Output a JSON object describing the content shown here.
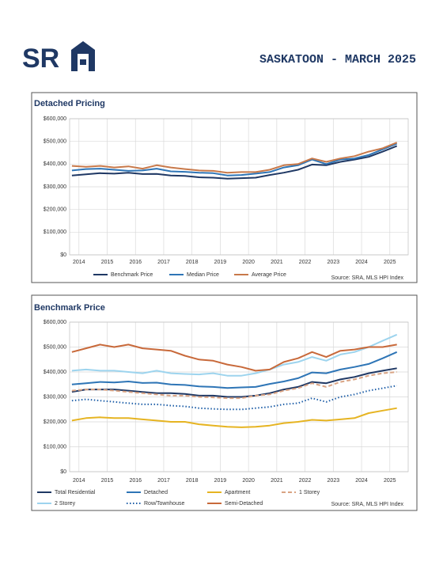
{
  "header": {
    "logo_text": "SR",
    "title": "SASKATOON - MARCH 2025"
  },
  "chart_data": [
    {
      "type": "line",
      "title": "Detached Pricing",
      "source": "Source: SRA, MLS HPI Index",
      "grid": true,
      "x": [
        2013.75,
        2014.25,
        2014.75,
        2015.25,
        2015.75,
        2016.25,
        2016.75,
        2017.25,
        2017.75,
        2018.25,
        2018.75,
        2019.25,
        2019.75,
        2020.25,
        2020.75,
        2021.25,
        2021.75,
        2022.25,
        2022.75,
        2023.25,
        2023.75,
        2024.25,
        2024.75,
        2025.25
      ],
      "xlim": [
        2013.67,
        2025.65
      ],
      "xticks": [
        2014,
        2015,
        2016,
        2017,
        2018,
        2019,
        2020,
        2021,
        2022,
        2023,
        2024,
        2025
      ],
      "ylim": [
        0,
        600000
      ],
      "yticks": [
        {
          "value": 0,
          "label": "$0"
        },
        {
          "value": 100000,
          "label": "$100,000"
        },
        {
          "value": 200000,
          "label": "$200,000"
        },
        {
          "value": 300000,
          "label": "$300,000"
        },
        {
          "value": 400000,
          "label": "$400,000"
        },
        {
          "value": 500000,
          "label": "$500,000"
        },
        {
          "value": 600000,
          "label": "$600,000"
        }
      ],
      "series": [
        {
          "name": "Benchmark Price",
          "color": "#1f3864",
          "style": "solid",
          "values": [
            350000,
            355000,
            360000,
            358000,
            362000,
            356000,
            357000,
            350000,
            348000,
            342000,
            340000,
            336000,
            338000,
            340000,
            352000,
            362000,
            375000,
            398000,
            395000,
            410000,
            420000,
            432000,
            455000,
            480000
          ]
        },
        {
          "name": "Median Price",
          "color": "#2e75b6",
          "style": "solid",
          "values": [
            372000,
            378000,
            380000,
            375000,
            370000,
            372000,
            380000,
            368000,
            366000,
            362000,
            360000,
            350000,
            352000,
            358000,
            365000,
            385000,
            395000,
            420000,
            400000,
            420000,
            425000,
            440000,
            465000,
            490000
          ]
        },
        {
          "name": "Average Price",
          "color": "#c8794a",
          "style": "solid",
          "values": [
            392000,
            388000,
            392000,
            385000,
            390000,
            380000,
            395000,
            385000,
            378000,
            372000,
            370000,
            362000,
            365000,
            365000,
            375000,
            395000,
            400000,
            425000,
            410000,
            425000,
            435000,
            455000,
            470000,
            495000
          ]
        }
      ]
    },
    {
      "type": "line",
      "title": "Benchmark Price",
      "source": "Source: SRA, MLS HPI Index",
      "grid": true,
      "x": [
        2013.75,
        2014.25,
        2014.75,
        2015.25,
        2015.75,
        2016.25,
        2016.75,
        2017.25,
        2017.75,
        2018.25,
        2018.75,
        2019.25,
        2019.75,
        2020.25,
        2020.75,
        2021.25,
        2021.75,
        2022.25,
        2022.75,
        2023.25,
        2023.75,
        2024.25,
        2024.75,
        2025.25
      ],
      "xlim": [
        2013.67,
        2025.65
      ],
      "xticks": [
        2014,
        2015,
        2016,
        2017,
        2018,
        2019,
        2020,
        2021,
        2022,
        2023,
        2024,
        2025
      ],
      "ylim": [
        0,
        600000
      ],
      "yticks": [
        {
          "value": 0,
          "label": "$0"
        },
        {
          "value": 100000,
          "label": "$100,000"
        },
        {
          "value": 200000,
          "label": "$200,000"
        },
        {
          "value": 300000,
          "label": "$300,000"
        },
        {
          "value": 400000,
          "label": "$400,000"
        },
        {
          "value": 500000,
          "label": "$500,000"
        },
        {
          "value": 600000,
          "label": "$600,000"
        }
      ],
      "series": [
        {
          "name": "Total Residential",
          "color": "#1f3864",
          "style": "solid",
          "values": [
            320000,
            330000,
            330000,
            330000,
            325000,
            320000,
            315000,
            315000,
            312000,
            305000,
            305000,
            300000,
            300000,
            305000,
            315000,
            330000,
            340000,
            360000,
            355000,
            370000,
            380000,
            395000,
            405000,
            415000
          ]
        },
        {
          "name": "Detached",
          "color": "#2e75b6",
          "style": "solid",
          "values": [
            350000,
            355000,
            360000,
            358000,
            362000,
            356000,
            357000,
            350000,
            348000,
            342000,
            340000,
            336000,
            338000,
            340000,
            352000,
            362000,
            375000,
            398000,
            395000,
            410000,
            420000,
            432000,
            455000,
            480000
          ]
        },
        {
          "name": "Apartment",
          "color": "#e6b422",
          "style": "solid",
          "values": [
            205000,
            215000,
            218000,
            215000,
            215000,
            210000,
            205000,
            200000,
            200000,
            190000,
            185000,
            180000,
            178000,
            180000,
            185000,
            195000,
            200000,
            208000,
            205000,
            210000,
            215000,
            235000,
            245000,
            255000
          ]
        },
        {
          "name": "1 Storey",
          "color": "#d9a383",
          "style": "dashed",
          "values": [
            325000,
            330000,
            330000,
            325000,
            320000,
            315000,
            310000,
            305000,
            305000,
            300000,
            298000,
            295000,
            295000,
            305000,
            310000,
            325000,
            335000,
            355000,
            340000,
            360000,
            370000,
            385000,
            395000,
            400000
          ]
        },
        {
          "name": "2 Storey",
          "color": "#9dd4ee",
          "style": "solid",
          "values": [
            405000,
            410000,
            405000,
            405000,
            400000,
            395000,
            405000,
            395000,
            392000,
            390000,
            395000,
            385000,
            385000,
            395000,
            410000,
            430000,
            440000,
            460000,
            445000,
            470000,
            480000,
            500000,
            525000,
            550000
          ]
        },
        {
          "name": "Row/Townhouse",
          "color": "#1f5fa8",
          "style": "dotted",
          "values": [
            285000,
            290000,
            285000,
            280000,
            275000,
            270000,
            270000,
            265000,
            262000,
            255000,
            252000,
            250000,
            250000,
            255000,
            260000,
            270000,
            275000,
            295000,
            280000,
            300000,
            310000,
            325000,
            335000,
            345000
          ]
        },
        {
          "name": "Semi-Detached",
          "color": "#c8693a",
          "style": "solid",
          "values": [
            480000,
            495000,
            510000,
            500000,
            510000,
            495000,
            490000,
            485000,
            465000,
            450000,
            445000,
            430000,
            420000,
            405000,
            410000,
            440000,
            455000,
            480000,
            460000,
            485000,
            490000,
            500000,
            500000,
            510000
          ]
        }
      ]
    }
  ]
}
